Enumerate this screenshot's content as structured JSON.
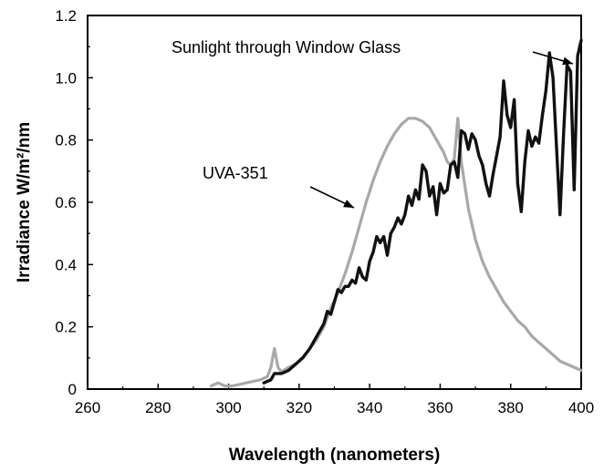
{
  "chart_data": {
    "type": "line",
    "title": "",
    "xlabel": "Wavelength (nanometers)",
    "ylabel": "Irradiance  W/m²/nm",
    "xlim": [
      260,
      400
    ],
    "ylim": [
      0,
      1.2
    ],
    "x_ticks": [
      "260",
      "280",
      "300",
      "320",
      "340",
      "360",
      "380",
      "400"
    ],
    "y_ticks": [
      "0",
      "0.2",
      "0.4",
      "0.6",
      "0.8",
      "1.0",
      "1.2"
    ],
    "grid": false,
    "series": [
      {
        "name": "Sunlight through Window Glass",
        "color": "#111111",
        "style": "thick",
        "points": [
          [
            310,
            0.02
          ],
          [
            312,
            0.03
          ],
          [
            313,
            0.05
          ],
          [
            315,
            0.05
          ],
          [
            317,
            0.06
          ],
          [
            319,
            0.08
          ],
          [
            321,
            0.1
          ],
          [
            323,
            0.13
          ],
          [
            325,
            0.17
          ],
          [
            327,
            0.21
          ],
          [
            328,
            0.25
          ],
          [
            329,
            0.24
          ],
          [
            330,
            0.28
          ],
          [
            331,
            0.32
          ],
          [
            332,
            0.31
          ],
          [
            333,
            0.33
          ],
          [
            334,
            0.33
          ],
          [
            335,
            0.35
          ],
          [
            336,
            0.34
          ],
          [
            337,
            0.39
          ],
          [
            338,
            0.36
          ],
          [
            339,
            0.35
          ],
          [
            340,
            0.41
          ],
          [
            341,
            0.44
          ],
          [
            342,
            0.49
          ],
          [
            343,
            0.47
          ],
          [
            344,
            0.49
          ],
          [
            345,
            0.43
          ],
          [
            346,
            0.5
          ],
          [
            347,
            0.52
          ],
          [
            348,
            0.55
          ],
          [
            349,
            0.53
          ],
          [
            350,
            0.56
          ],
          [
            351,
            0.62
          ],
          [
            352,
            0.59
          ],
          [
            353,
            0.64
          ],
          [
            354,
            0.61
          ],
          [
            355,
            0.72
          ],
          [
            356,
            0.7
          ],
          [
            357,
            0.62
          ],
          [
            358,
            0.65
          ],
          [
            359,
            0.56
          ],
          [
            360,
            0.66
          ],
          [
            361,
            0.63
          ],
          [
            362,
            0.64
          ],
          [
            363,
            0.72
          ],
          [
            364,
            0.73
          ],
          [
            365,
            0.68
          ],
          [
            366,
            0.83
          ],
          [
            367,
            0.82
          ],
          [
            368,
            0.77
          ],
          [
            369,
            0.82
          ],
          [
            370,
            0.8
          ],
          [
            371,
            0.75
          ],
          [
            372,
            0.72
          ],
          [
            373,
            0.66
          ],
          [
            374,
            0.62
          ],
          [
            375,
            0.69
          ],
          [
            376,
            0.75
          ],
          [
            377,
            0.81
          ],
          [
            378,
            0.99
          ],
          [
            379,
            0.88
          ],
          [
            380,
            0.84
          ],
          [
            381,
            0.93
          ],
          [
            382,
            0.66
          ],
          [
            383,
            0.57
          ],
          [
            384,
            0.73
          ],
          [
            385,
            0.83
          ],
          [
            386,
            0.78
          ],
          [
            387,
            0.81
          ],
          [
            388,
            0.79
          ],
          [
            389,
            0.88
          ],
          [
            390,
            0.96
          ],
          [
            391,
            1.08
          ],
          [
            392,
            1.0
          ],
          [
            393,
            0.78
          ],
          [
            394,
            0.56
          ],
          [
            395,
            0.82
          ],
          [
            396,
            1.04
          ],
          [
            397,
            1.02
          ],
          [
            398,
            0.64
          ],
          [
            399,
            1.07
          ],
          [
            400,
            1.12
          ]
        ]
      },
      {
        "name": "UVA-351",
        "color": "#a8a8a8",
        "style": "thin",
        "points": [
          [
            295,
            0.01
          ],
          [
            297,
            0.02
          ],
          [
            299,
            0.01
          ],
          [
            301,
            0.01
          ],
          [
            303,
            0.015
          ],
          [
            305,
            0.02
          ],
          [
            307,
            0.025
          ],
          [
            309,
            0.03
          ],
          [
            311,
            0.04
          ],
          [
            312,
            0.07
          ],
          [
            313,
            0.13
          ],
          [
            314,
            0.07
          ],
          [
            315,
            0.055
          ],
          [
            317,
            0.07
          ],
          [
            319,
            0.08
          ],
          [
            321,
            0.1
          ],
          [
            323,
            0.13
          ],
          [
            325,
            0.16
          ],
          [
            327,
            0.2
          ],
          [
            329,
            0.26
          ],
          [
            331,
            0.31
          ],
          [
            333,
            0.37
          ],
          [
            335,
            0.44
          ],
          [
            337,
            0.52
          ],
          [
            339,
            0.6
          ],
          [
            341,
            0.67
          ],
          [
            343,
            0.73
          ],
          [
            345,
            0.78
          ],
          [
            347,
            0.82
          ],
          [
            349,
            0.85
          ],
          [
            351,
            0.87
          ],
          [
            353,
            0.87
          ],
          [
            355,
            0.86
          ],
          [
            357,
            0.84
          ],
          [
            359,
            0.8
          ],
          [
            361,
            0.76
          ],
          [
            362,
            0.73
          ],
          [
            363,
            0.72
          ],
          [
            364,
            0.74
          ],
          [
            365,
            0.87
          ],
          [
            366,
            0.73
          ],
          [
            368,
            0.58
          ],
          [
            370,
            0.48
          ],
          [
            372,
            0.41
          ],
          [
            374,
            0.36
          ],
          [
            376,
            0.32
          ],
          [
            378,
            0.28
          ],
          [
            380,
            0.25
          ],
          [
            382,
            0.22
          ],
          [
            384,
            0.2
          ],
          [
            386,
            0.17
          ],
          [
            388,
            0.15
          ],
          [
            390,
            0.13
          ],
          [
            392,
            0.11
          ],
          [
            394,
            0.09
          ],
          [
            396,
            0.08
          ],
          [
            398,
            0.07
          ],
          [
            400,
            0.06
          ]
        ]
      }
    ],
    "annotations": [
      {
        "text": "Sunlight through Window Glass",
        "points_to": [
          391,
          1.08
        ]
      },
      {
        "text": "UVA-351",
        "points_to": [
          340,
          0.6
        ]
      }
    ]
  }
}
